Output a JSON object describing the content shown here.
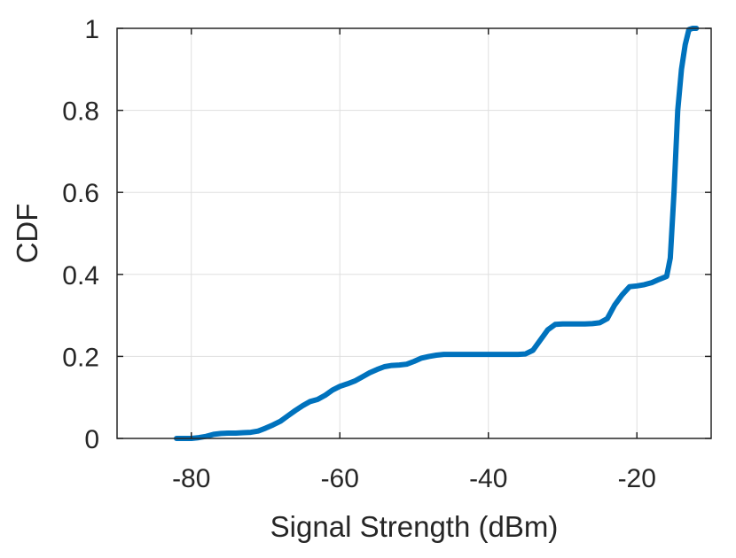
{
  "chart_data": {
    "type": "line",
    "title": "",
    "xlabel": "Signal Strength (dBm)",
    "ylabel": "CDF",
    "xlim": [
      -90,
      -10
    ],
    "ylim": [
      0,
      1
    ],
    "grid": true,
    "xticks": [
      -80,
      -60,
      -40,
      -20
    ],
    "xtick_labels": [
      "-80",
      "-60",
      "-40",
      "-20"
    ],
    "yticks": [
      0,
      0.2,
      0.4,
      0.6,
      0.8,
      1
    ],
    "ytick_labels": [
      "0",
      "0.2",
      "0.4",
      "0.6",
      "0.8",
      "1"
    ],
    "series": [
      {
        "color": "#0072bd",
        "x": [
          -82,
          -80,
          -79,
          -78,
          -77,
          -76,
          -75,
          -74,
          -73,
          -72,
          -71,
          -70,
          -69,
          -68,
          -67,
          -66,
          -65,
          -64,
          -63,
          -62,
          -61,
          -60,
          -59,
          -58,
          -57,
          -56,
          -55,
          -54,
          -53,
          -52,
          -51,
          -50,
          -49,
          -48,
          -47,
          -46,
          -45,
          -44,
          -42,
          -40,
          -38,
          -36,
          -35,
          -34,
          -33,
          -32,
          -31,
          -30,
          -29,
          -28,
          -27,
          -26,
          -25,
          -24,
          -23,
          -22,
          -21,
          -20,
          -19,
          -18,
          -17,
          -16,
          -15.5,
          -15,
          -14.5,
          -14,
          -13.5,
          -13,
          -12.5,
          -12
        ],
        "y": [
          0.0,
          0.0,
          0.002,
          0.005,
          0.01,
          0.012,
          0.013,
          0.013,
          0.014,
          0.015,
          0.018,
          0.025,
          0.033,
          0.042,
          0.055,
          0.068,
          0.08,
          0.09,
          0.095,
          0.105,
          0.118,
          0.127,
          0.133,
          0.14,
          0.15,
          0.16,
          0.168,
          0.175,
          0.178,
          0.179,
          0.181,
          0.188,
          0.196,
          0.2,
          0.203,
          0.205,
          0.205,
          0.205,
          0.205,
          0.205,
          0.205,
          0.205,
          0.206,
          0.215,
          0.24,
          0.265,
          0.278,
          0.279,
          0.279,
          0.279,
          0.279,
          0.28,
          0.282,
          0.292,
          0.325,
          0.35,
          0.37,
          0.372,
          0.375,
          0.38,
          0.388,
          0.395,
          0.44,
          0.6,
          0.8,
          0.9,
          0.96,
          0.997,
          1.0,
          1.0
        ]
      }
    ]
  }
}
